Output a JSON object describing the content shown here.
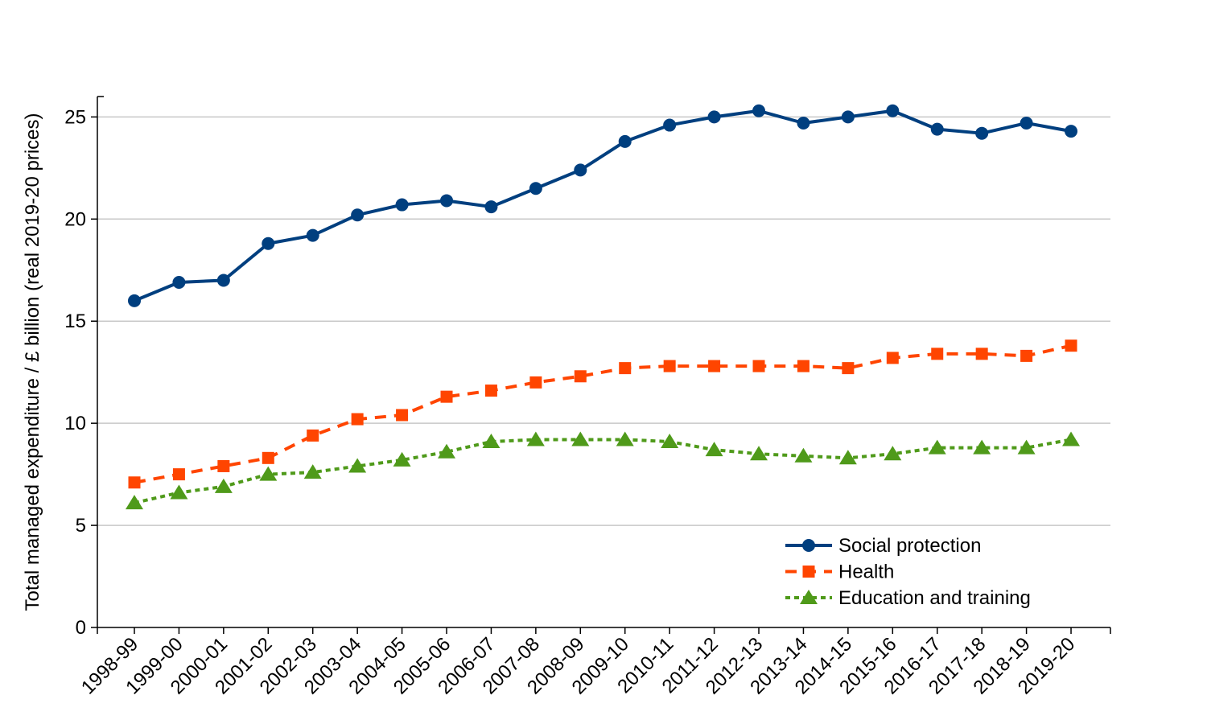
{
  "chart_data": {
    "type": "line",
    "title": "",
    "xlabel": "",
    "ylabel": "Total managed expenditure / £ billion (real 2019-20 prices)",
    "ylim": [
      0,
      26
    ],
    "yticks": [
      0,
      5,
      10,
      15,
      20,
      25
    ],
    "grid": "horizontal",
    "legend_position": "bottom-right",
    "categories": [
      "1998-99",
      "1999-00",
      "2000-01",
      "2001-02",
      "2002-03",
      "2003-04",
      "2004-05",
      "2005-06",
      "2006-07",
      "2007-08",
      "2008-09",
      "2009-10",
      "2010-11",
      "2011-12",
      "2012-13",
      "2013-14",
      "2014-15",
      "2015-16",
      "2016-17",
      "2017-18",
      "2018-19",
      "2019-20"
    ],
    "series": [
      {
        "name": "Social protection",
        "color": "#003f7f",
        "marker": "circle",
        "dash": "solid",
        "values": [
          16.0,
          16.9,
          17.0,
          18.8,
          19.2,
          20.2,
          20.7,
          20.9,
          20.6,
          21.5,
          22.4,
          23.8,
          24.6,
          25.0,
          25.3,
          24.7,
          25.0,
          25.3,
          24.4,
          24.2,
          24.7,
          24.3
        ]
      },
      {
        "name": "Health",
        "color": "#ff4500",
        "marker": "square",
        "dash": "dashed",
        "values": [
          7.1,
          7.5,
          7.9,
          8.3,
          9.4,
          10.2,
          10.4,
          11.3,
          11.6,
          12.0,
          12.3,
          12.7,
          12.8,
          12.8,
          12.8,
          12.8,
          12.7,
          13.2,
          13.4,
          13.4,
          13.3,
          13.8
        ]
      },
      {
        "name": "Education and training",
        "color": "#4f9a1a",
        "marker": "triangle",
        "dash": "dotted",
        "values": [
          6.1,
          6.6,
          6.9,
          7.5,
          7.6,
          7.9,
          8.2,
          8.6,
          9.1,
          9.2,
          9.2,
          9.2,
          9.1,
          8.7,
          8.5,
          8.4,
          8.3,
          8.5,
          8.8,
          8.8,
          8.8,
          9.2
        ]
      }
    ]
  }
}
